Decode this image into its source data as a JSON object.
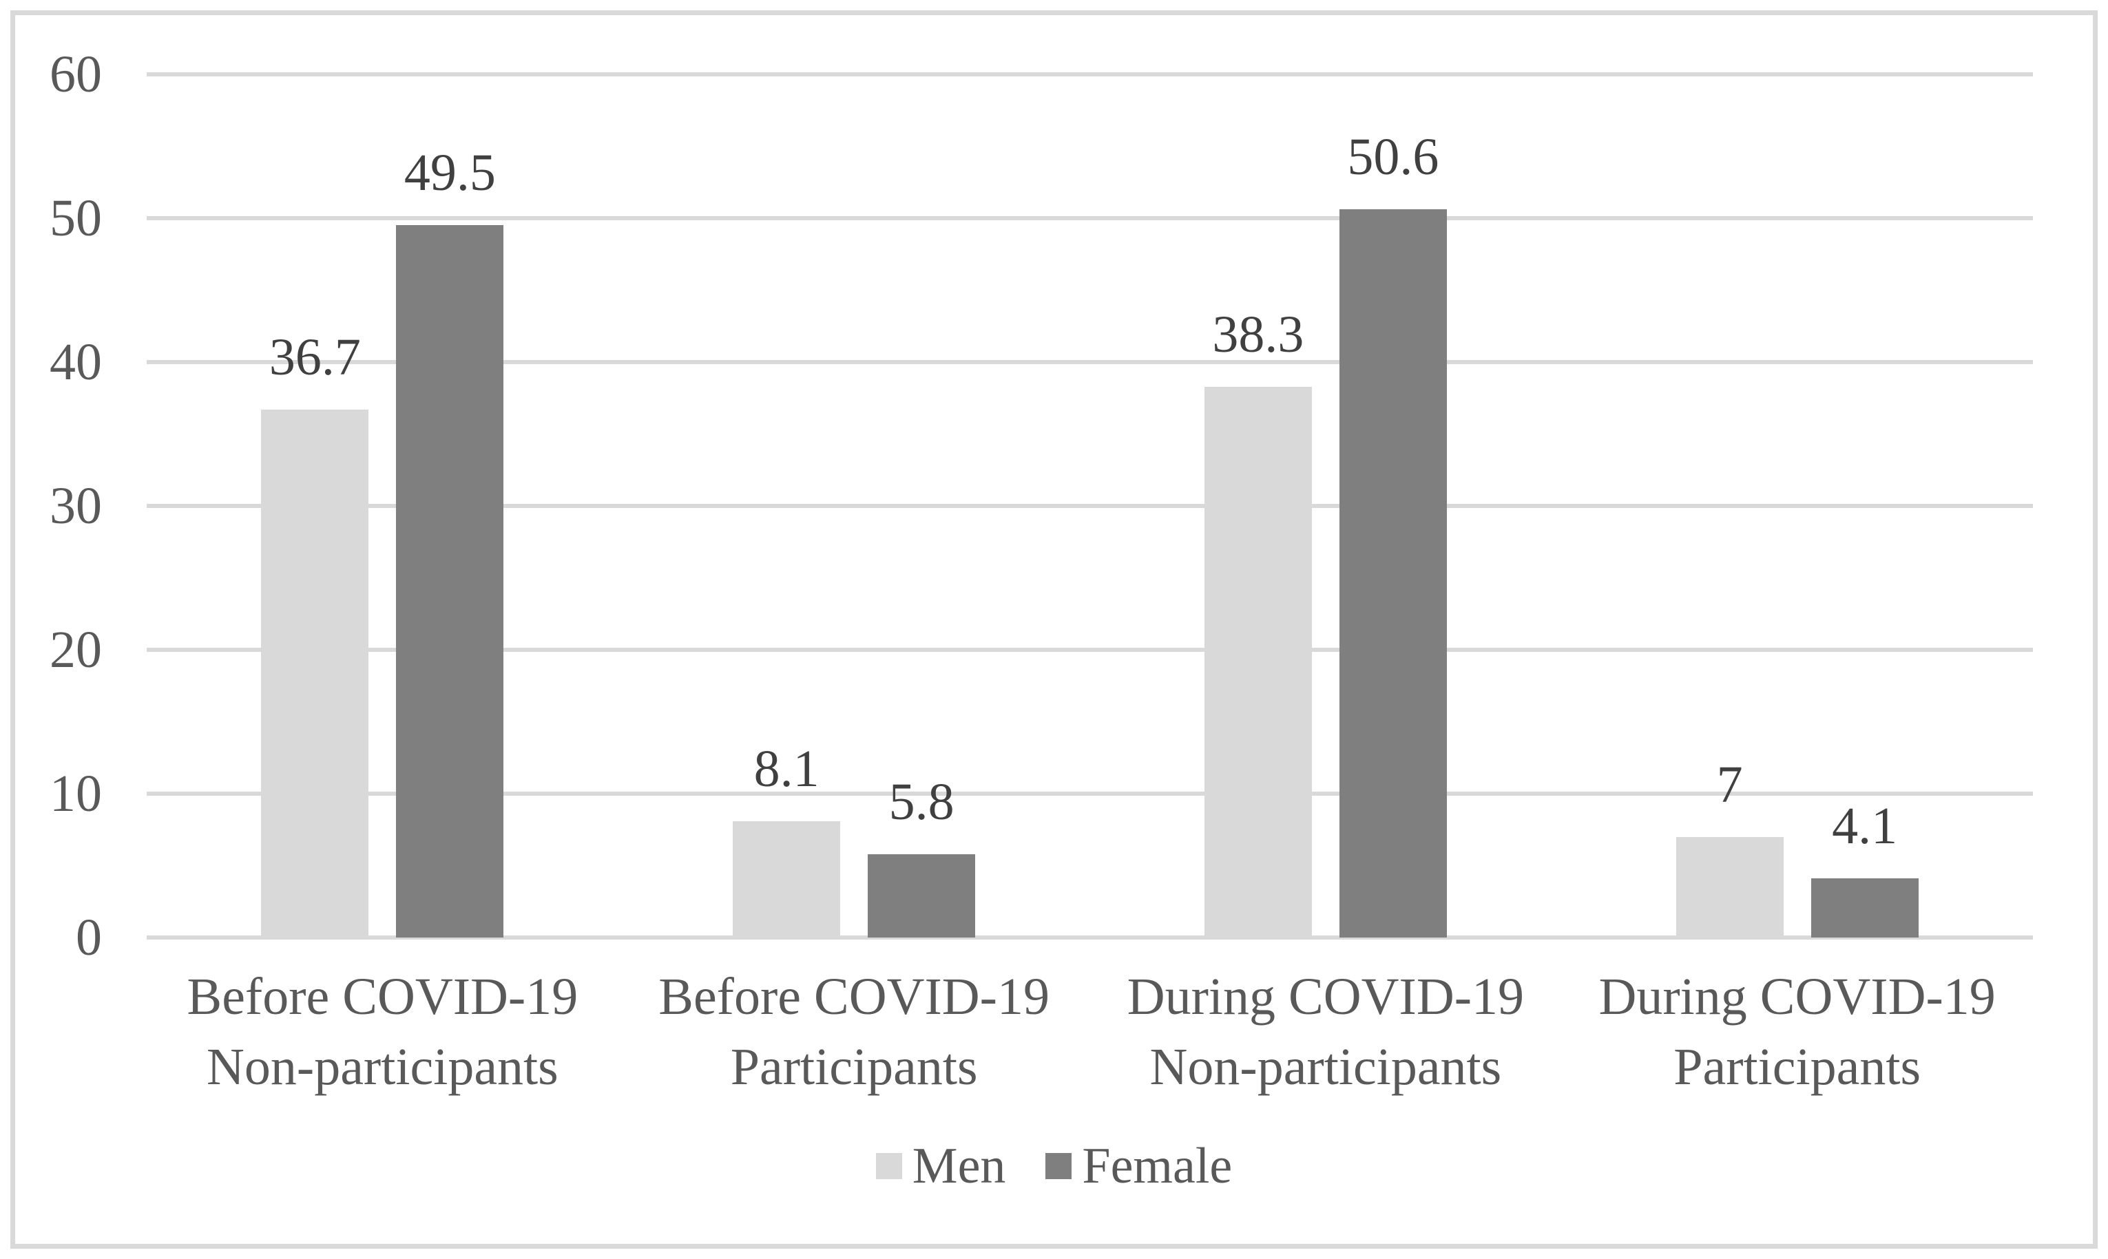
{
  "figure": {
    "background_color": "#ffffff",
    "border_color": "#d9d9d9"
  },
  "chart_data": {
    "type": "bar",
    "title": "",
    "xlabel": "",
    "ylabel": "",
    "categories": [
      [
        "Before COVID-19",
        "Non-participants"
      ],
      [
        "Before COVID-19",
        "Participants"
      ],
      [
        "During COVID-19",
        "Non-participants"
      ],
      [
        "During COVID-19",
        "Participants"
      ]
    ],
    "series": [
      {
        "name": "Men",
        "color": "#d9d9d9",
        "values": [
          36.7,
          8.1,
          38.3,
          7
        ],
        "labels": [
          "36.7",
          "8.1",
          "38.3",
          "7"
        ]
      },
      {
        "name": "Female",
        "color": "#7f7f7f",
        "values": [
          49.5,
          5.8,
          50.6,
          4.1
        ],
        "labels": [
          "49.5",
          "5.8",
          "50.6",
          "4.1"
        ]
      }
    ],
    "y_axis": {
      "min": 0,
      "max": 60,
      "ticks": [
        0,
        10,
        20,
        30,
        40,
        50,
        60
      ]
    },
    "grid": true,
    "gridline_color": "#d9d9d9",
    "legend_position": "bottom",
    "axis_text_color": "#595959",
    "data_label_color": "#404040"
  }
}
